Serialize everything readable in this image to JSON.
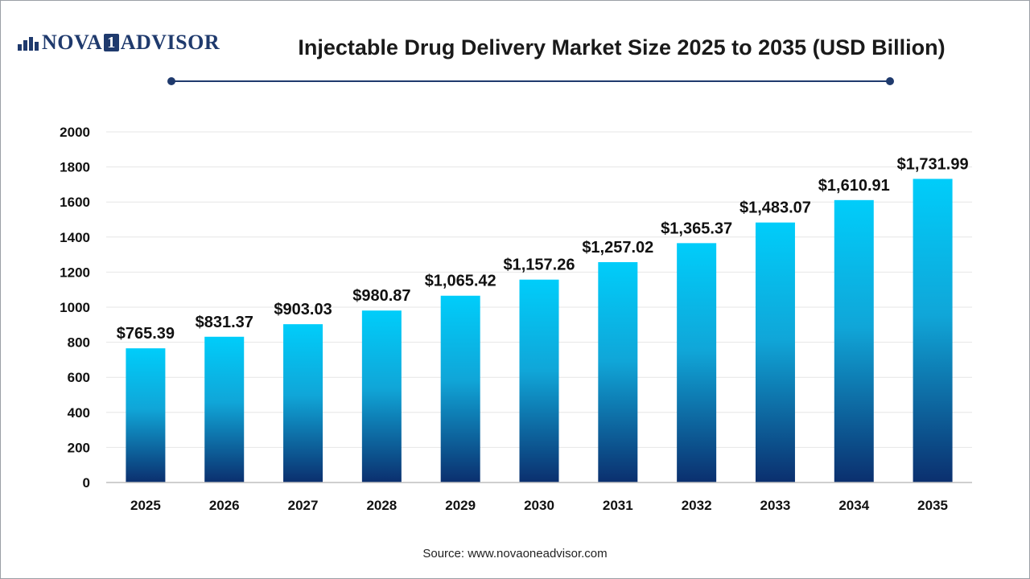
{
  "brand": {
    "part1": "NOVA",
    "box": "1",
    "part2": "ADVISOR"
  },
  "source": "Source: www.novaoneadvisor.com",
  "colors": {
    "bar_top": "#00cdfa",
    "bar_bottom": "#0b2f6e",
    "accent": "#1f3a6d"
  },
  "chart_data": {
    "type": "bar",
    "title": "Injectable Drug Delivery Market Size 2025 to 2035 (USD Billion)",
    "xlabel": "",
    "ylabel": "",
    "categories": [
      "2025",
      "2026",
      "2027",
      "2028",
      "2029",
      "2030",
      "2031",
      "2032",
      "2033",
      "2034",
      "2035"
    ],
    "values": [
      765.39,
      831.37,
      903.03,
      980.87,
      1065.42,
      1157.26,
      1257.02,
      1365.37,
      1483.07,
      1610.91,
      1731.99
    ],
    "data_labels": [
      "$765.39",
      "$831.37",
      "$903.03",
      "$980.87",
      "$1,065.42",
      "$1,157.26",
      "$1,257.02",
      "$1,365.37",
      "$1,483.07",
      "$1,610.91",
      "$1,731.99"
    ],
    "yticks": [
      0,
      200,
      400,
      600,
      800,
      1000,
      1200,
      1400,
      1600,
      1800,
      2000
    ],
    "ylim": [
      0,
      2000
    ],
    "grid": true,
    "legend": "none"
  }
}
